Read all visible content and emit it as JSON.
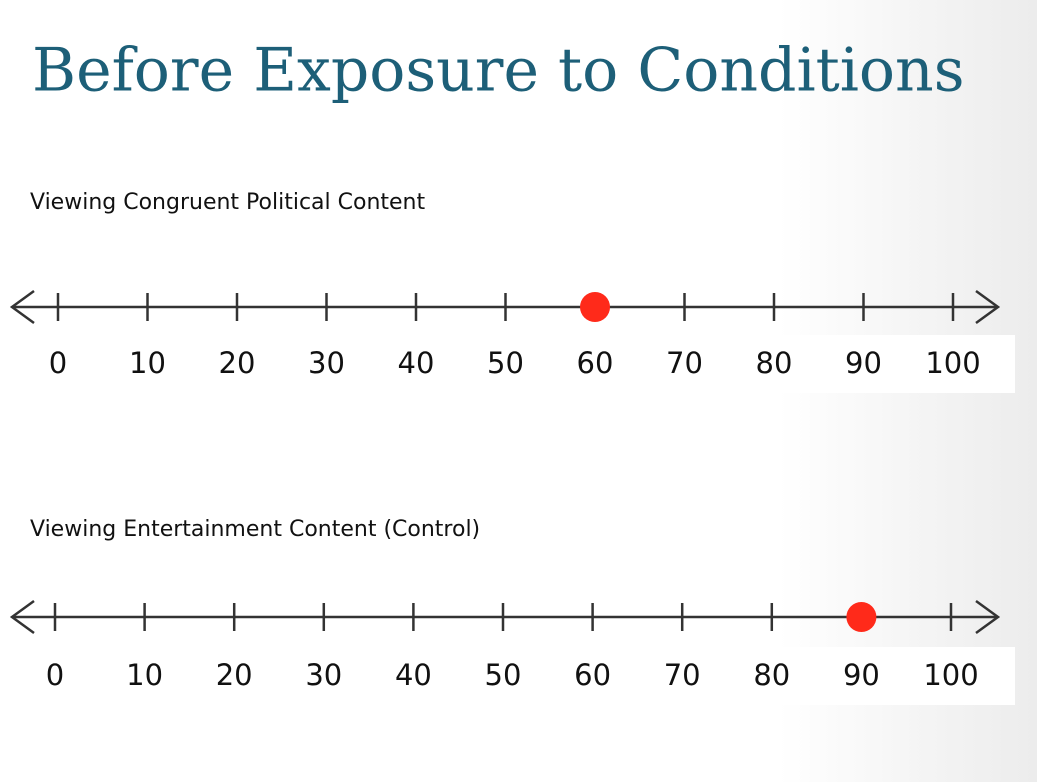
{
  "title": "Before Exposure to Conditions",
  "chart_data": [
    {
      "type": "dot",
      "title": "Viewing Congruent Political Content",
      "values": [
        60
      ],
      "color": "#ff2a1a",
      "xlim": [
        0,
        100
      ],
      "xticks": [
        0,
        10,
        20,
        30,
        40,
        50,
        60,
        70,
        80,
        90,
        100
      ]
    },
    {
      "type": "dot",
      "title": "Viewing Entertainment Content (Control)",
      "values": [
        90
      ],
      "color": "#ff2a1a",
      "xlim": [
        0,
        100
      ],
      "xticks": [
        0,
        10,
        20,
        30,
        40,
        50,
        60,
        70,
        80,
        90,
        100
      ]
    }
  ]
}
